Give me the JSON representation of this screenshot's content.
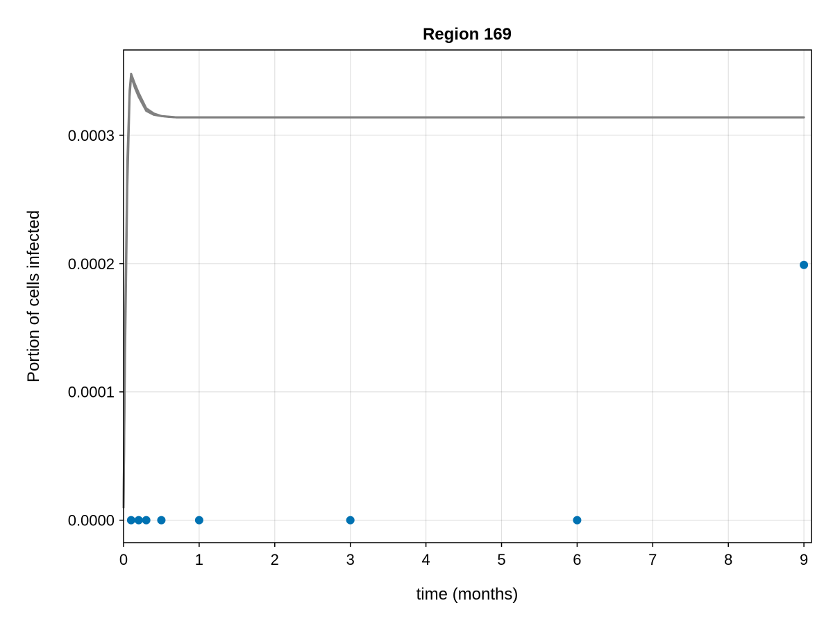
{
  "chart_data": {
    "type": "scatter",
    "title": "Region 169",
    "xlabel": "time (months)",
    "ylabel": "Portion of cells infected",
    "xlim": [
      0,
      9.1
    ],
    "ylim": [
      -1.75e-05,
      0.0003665
    ],
    "xticks": [
      0,
      1,
      2,
      3,
      4,
      5,
      6,
      7,
      8,
      9
    ],
    "xtick_labels": [
      "0",
      "1",
      "2",
      "3",
      "4",
      "5",
      "6",
      "7",
      "8",
      "9"
    ],
    "yticks": [
      0,
      0.0001,
      0.0002,
      0.0003
    ],
    "ytick_labels": [
      "0.0000",
      "0.0001",
      "0.0002",
      "0.0003"
    ],
    "grid": true,
    "legend": "none",
    "series": [
      {
        "kind": "line",
        "color": "#808080",
        "x": [
          0,
          0.02,
          0.05,
          0.08,
          0.1,
          0.15,
          0.2,
          0.3,
          0.4,
          0.5,
          0.6,
          0.7,
          1,
          2,
          4,
          6,
          8,
          9
        ],
        "y": [
          1e-05,
          0.00015,
          0.00028,
          0.000335,
          0.000348,
          0.00034,
          0.000333,
          0.000321,
          0.000317,
          0.000315,
          0.0003145,
          0.000314,
          0.000314,
          0.000314,
          0.000314,
          0.000314,
          0.000314,
          0.000314
        ]
      },
      {
        "kind": "line",
        "color": "#808080",
        "x": [
          0,
          0.02,
          0.05,
          0.08,
          0.1,
          0.15,
          0.2,
          0.3,
          0.4,
          0.5,
          0.6,
          0.7,
          1,
          2,
          4,
          6,
          8,
          9
        ],
        "y": [
          1e-05,
          0.00013,
          0.00026,
          0.00033,
          0.000346,
          0.000337,
          0.00033,
          0.000319,
          0.000316,
          0.000315,
          0.0003143,
          0.000314,
          0.000314,
          0.000314,
          0.000314,
          0.000314,
          0.000314,
          0.000314
        ]
      },
      {
        "kind": "scatter",
        "color": "#0072b2",
        "x": [
          0.1,
          0.2,
          0.3,
          0.5,
          1,
          3,
          6,
          9
        ],
        "y": [
          0,
          0,
          0,
          0,
          0,
          0,
          0,
          0.000199
        ]
      }
    ]
  }
}
